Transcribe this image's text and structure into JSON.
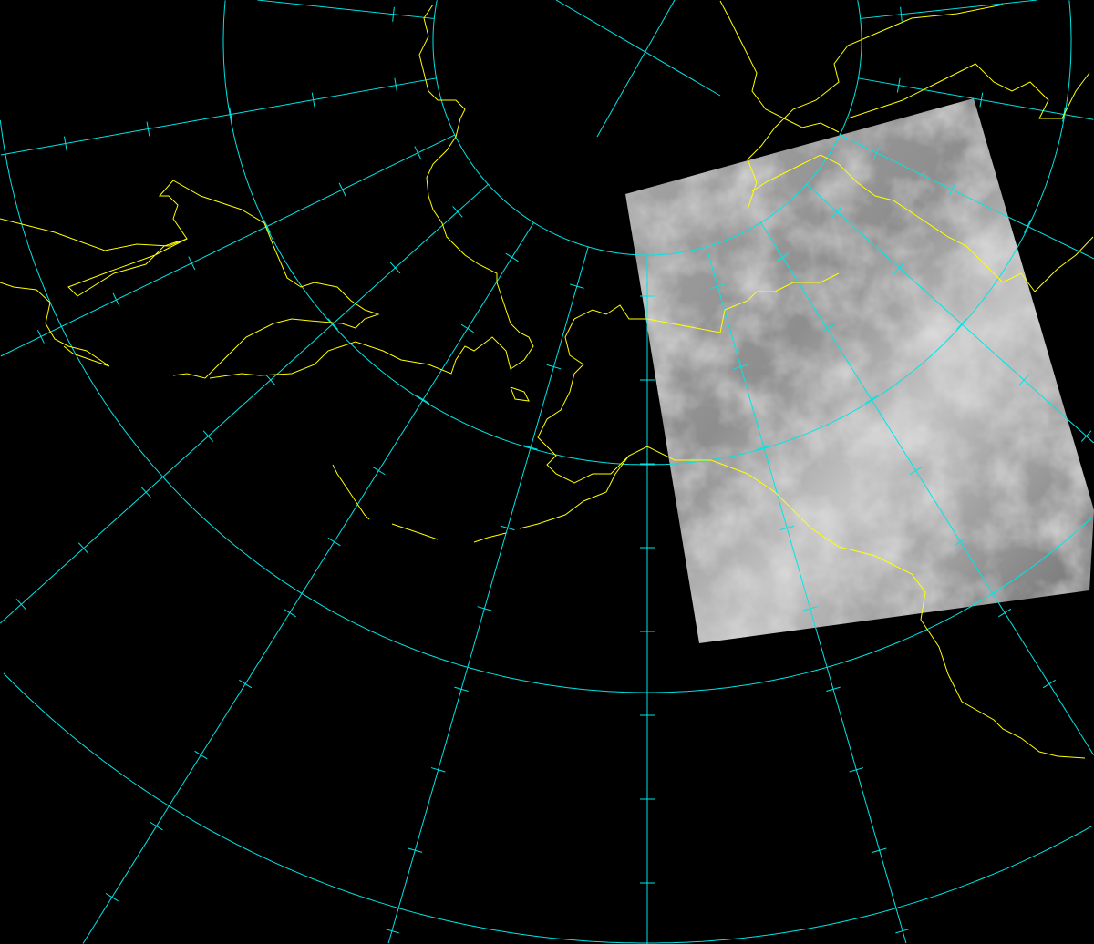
{
  "map": {
    "projection": "polar-stereographic",
    "background_color": "#000000",
    "grid_color": "#00e5e5",
    "coastline_color": "#ffff00",
    "imagery": "grayscale-satellite-infrared",
    "imagery_colors": [
      "#5a5a5a",
      "#9a9a9a",
      "#d8d8d8"
    ]
  }
}
